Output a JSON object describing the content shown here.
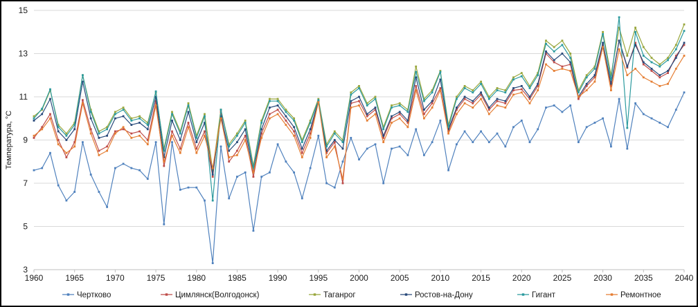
{
  "figure": {
    "background": "#ffffff",
    "border_color": "#000000",
    "grid_color": "#d9d9d9",
    "axis_color": "#bfbfbf"
  },
  "chart_data": {
    "type": "line",
    "title": "",
    "xlabel": "",
    "ylabel": "Температура, °C",
    "xlim": [
      1960,
      2040
    ],
    "ylim": [
      3,
      15
    ],
    "x_step_years": 1,
    "grid": "horizontal",
    "legend_position": "bottom",
    "y_ticks": [
      3,
      5,
      7,
      9,
      11,
      13,
      15
    ],
    "x_ticks": [
      1960,
      1965,
      1970,
      1975,
      1980,
      1985,
      1990,
      1995,
      2000,
      2005,
      2010,
      2015,
      2020,
      2025,
      2030,
      2035,
      2040
    ],
    "series": [
      {
        "name": "Чертково",
        "color": "#4F81BD",
        "values": [
          7.6,
          7.7,
          8.4,
          6.9,
          6.2,
          6.6,
          8.9,
          7.4,
          6.6,
          5.9,
          7.7,
          7.9,
          7.7,
          7.6,
          7.2,
          8.9,
          5.1,
          8.9,
          6.7,
          6.8,
          6.8,
          6.2,
          3.3,
          8.7,
          6.3,
          7.3,
          7.5,
          4.8,
          7.3,
          7.5,
          8.8,
          8.0,
          7.5,
          6.3,
          7.7,
          9.2,
          7.0,
          6.8,
          8.0,
          9.1,
          8.1,
          8.6,
          8.8,
          7.0,
          8.6,
          8.7,
          8.3,
          9.5,
          8.3,
          8.9,
          9.9,
          7.6,
          8.8,
          9.4,
          8.9,
          9.4,
          8.9,
          9.3,
          8.7,
          9.6,
          9.9,
          8.9,
          9.5,
          10.5,
          10.6,
          10.3,
          10.6,
          8.9,
          9.6,
          9.8,
          10.0,
          8.7,
          10.9,
          8.6,
          10.7,
          10.2,
          10.0,
          9.8,
          9.6,
          10.4,
          11.2
        ]
      },
      {
        "name": "Цимлянск(Волгодонск)",
        "color": "#BE4B48",
        "values": [
          9.1,
          9.6,
          10.2,
          9.0,
          8.2,
          8.9,
          10.85,
          9.5,
          8.5,
          8.7,
          9.4,
          9.5,
          9.3,
          9.4,
          9.0,
          10.8,
          7.8,
          9.4,
          8.6,
          9.8,
          8.6,
          9.4,
          7.3,
          10.3,
          8.0,
          8.5,
          9.2,
          7.3,
          9.3,
          10.2,
          10.4,
          9.9,
          9.4,
          8.4,
          9.3,
          10.8,
          8.4,
          8.9,
          7.0,
          10.7,
          10.8,
          10.1,
          10.4,
          9.1,
          10.0,
          10.2,
          9.8,
          11.5,
          10.2,
          10.7,
          11.4,
          9.4,
          10.4,
          10.9,
          10.7,
          11.1,
          10.4,
          10.8,
          10.7,
          11.3,
          11.35,
          10.9,
          11.5,
          13.0,
          12.6,
          12.4,
          12.5,
          10.9,
          11.5,
          11.9,
          13.4,
          11.5,
          13.6,
          12.35,
          13.5,
          12.5,
          12.2,
          11.9,
          12.1,
          12.9,
          13.4
        ]
      },
      {
        "name": "Таганрог",
        "color": "#98A63C",
        "values": [
          10.1,
          10.4,
          11.3,
          9.7,
          9.3,
          9.8,
          12.0,
          10.4,
          9.4,
          9.6,
          10.3,
          10.5,
          10.0,
          10.1,
          9.8,
          11.2,
          8.6,
          10.3,
          9.4,
          10.7,
          9.2,
          10.2,
          7.6,
          10.4,
          8.8,
          9.3,
          9.9,
          7.8,
          9.9,
          10.9,
          10.9,
          10.4,
          10.0,
          9.0,
          9.9,
          10.9,
          8.8,
          9.4,
          9.0,
          11.2,
          11.5,
          10.7,
          11.0,
          9.6,
          10.6,
          10.7,
          10.4,
          12.4,
          10.9,
          11.3,
          12.2,
          9.7,
          11.0,
          11.5,
          11.3,
          11.7,
          11.0,
          11.4,
          11.3,
          11.9,
          12.1,
          11.5,
          12.1,
          13.6,
          13.3,
          13.6,
          13.0,
          11.3,
          12.0,
          12.4,
          14.0,
          12.0,
          14.2,
          12.9,
          14.2,
          13.3,
          12.8,
          12.5,
          12.8,
          13.4,
          14.35
        ]
      },
      {
        "name": "Ростов-на-Дону",
        "color": "#27497A",
        "values": [
          9.9,
          10.2,
          10.9,
          9.4,
          9.0,
          9.5,
          11.7,
          10.0,
          9.1,
          9.2,
          10.0,
          10.1,
          9.7,
          9.8,
          9.5,
          11.0,
          8.2,
          9.9,
          9.0,
          10.3,
          8.9,
          9.8,
          7.4,
          10.1,
          8.5,
          8.9,
          9.5,
          7.5,
          9.5,
          10.5,
          10.6,
          10.1,
          9.6,
          8.6,
          9.5,
          10.8,
          8.5,
          9.0,
          8.6,
          10.8,
          11.0,
          10.2,
          10.5,
          9.2,
          10.1,
          10.3,
          9.9,
          11.9,
          10.4,
          10.8,
          11.8,
          9.5,
          10.5,
          11.0,
          10.8,
          11.2,
          10.5,
          10.9,
          10.8,
          11.4,
          11.5,
          11.0,
          11.6,
          13.1,
          12.7,
          13.0,
          12.6,
          11.0,
          11.6,
          12.0,
          13.5,
          11.6,
          13.6,
          12.4,
          13.4,
          12.6,
          12.3,
          12.0,
          12.2,
          12.8,
          13.5
        ]
      },
      {
        "name": "Гигант",
        "color": "#2B9A9E",
        "values": [
          10.0,
          10.45,
          11.35,
          9.6,
          9.2,
          9.7,
          12.0,
          10.3,
          9.3,
          9.5,
          10.2,
          10.4,
          9.9,
          10.0,
          9.7,
          11.25,
          8.5,
          10.2,
          9.3,
          10.6,
          9.1,
          10.1,
          6.2,
          10.4,
          8.7,
          9.2,
          9.8,
          7.7,
          9.8,
          10.8,
          10.8,
          10.3,
          9.9,
          8.9,
          9.8,
          10.85,
          8.7,
          9.3,
          8.9,
          11.1,
          11.4,
          10.6,
          10.9,
          9.5,
          10.5,
          10.6,
          10.3,
          12.15,
          10.8,
          11.2,
          12.15,
          9.6,
          10.9,
          11.4,
          11.2,
          11.6,
          10.9,
          11.3,
          11.2,
          11.8,
          11.95,
          11.4,
          12.0,
          13.45,
          13.1,
          13.4,
          12.8,
          11.2,
          11.9,
          12.3,
          13.9,
          11.8,
          14.68,
          9.56,
          14.0,
          12.9,
          12.6,
          12.4,
          12.7,
          13.2,
          14.05
        ]
      },
      {
        "name": "Ремонтное",
        "color": "#E57E33",
        "values": [
          9.2,
          9.5,
          10.0,
          8.8,
          8.4,
          8.7,
          10.7,
          9.3,
          8.3,
          8.5,
          9.3,
          9.6,
          9.1,
          9.2,
          8.8,
          10.6,
          8.0,
          9.2,
          8.4,
          9.6,
          8.4,
          9.2,
          7.7,
          10.0,
          8.2,
          8.3,
          9.0,
          7.5,
          9.1,
          10.0,
          10.2,
          9.7,
          9.2,
          8.2,
          9.1,
          10.75,
          8.2,
          8.7,
          7.2,
          10.5,
          10.6,
          9.9,
          10.2,
          8.9,
          9.8,
          10.0,
          9.6,
          11.3,
          10.0,
          10.5,
          11.3,
          9.3,
          10.2,
          10.7,
          10.5,
          10.9,
          10.2,
          10.6,
          10.5,
          11.1,
          11.2,
          10.7,
          11.3,
          12.5,
          12.2,
          12.3,
          12.2,
          11.0,
          11.3,
          11.7,
          13.3,
          11.3,
          13.2,
          12.0,
          12.3,
          11.9,
          11.7,
          11.5,
          11.6,
          12.3,
          12.9
        ]
      }
    ]
  }
}
